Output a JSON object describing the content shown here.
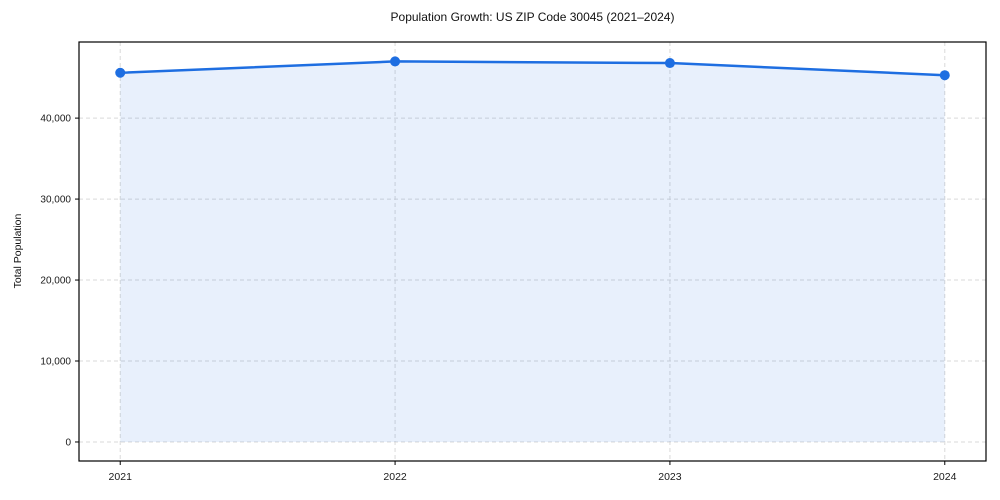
{
  "chart_data": {
    "type": "area",
    "title": "Population Growth: US ZIP Code 30045 (2021–2024)",
    "xlabel": "",
    "ylabel": "Total Population",
    "x": [
      2021,
      2022,
      2023,
      2024
    ],
    "x_tick_labels": [
      "2021",
      "2022",
      "2023",
      "2024"
    ],
    "series": [
      {
        "name": "Total Population",
        "values": [
          45600,
          47000,
          46800,
          45300
        ]
      }
    ],
    "yticks": [
      0,
      10000,
      20000,
      30000,
      40000
    ],
    "ytick_labels": [
      "0",
      "10,000",
      "20,000",
      "30,000",
      "40,000"
    ],
    "xlim": [
      2020.85,
      2024.15
    ],
    "ylim": [
      -2350,
      49400
    ],
    "grid": true,
    "grid_style": "dashed",
    "legend": "none",
    "marker": "circle",
    "colors": {
      "line": "#1e6ee1",
      "marker": "#1e6ee1",
      "fill": "rgba(30,110,225,0.10)",
      "grid": "#d9d9d9",
      "spine": "#000000",
      "text": "#1a1a1a",
      "background": "#ffffff"
    }
  }
}
